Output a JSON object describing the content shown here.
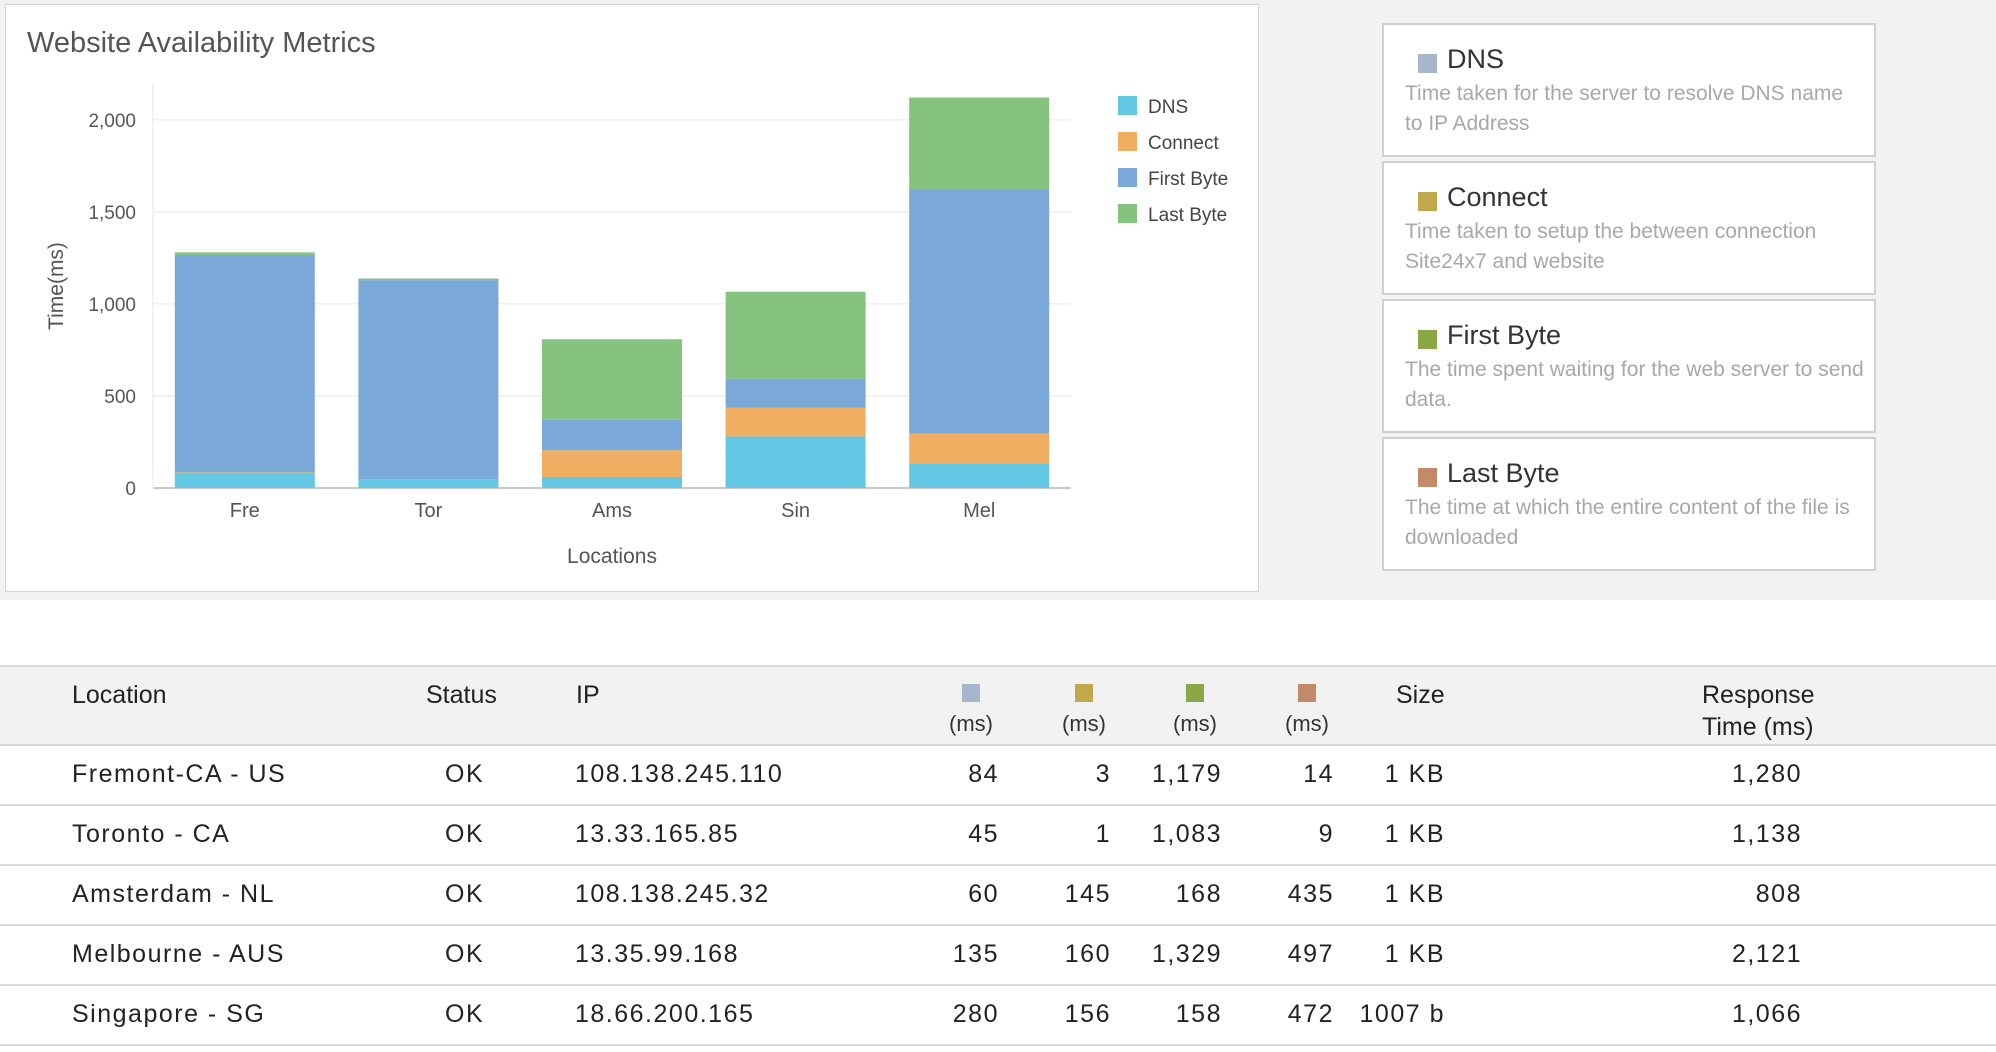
{
  "chart_title": "Website Availability Metrics",
  "chart_data": {
    "type": "bar",
    "stacked": true,
    "title": "Website Availability Metrics",
    "xlabel": "Locations",
    "ylabel": "Time(ms)",
    "ylim": [
      0,
      2200
    ],
    "yticks": [
      0,
      500,
      1000,
      1500,
      2000
    ],
    "ytick_labels": [
      "0",
      "500",
      "1,000",
      "1,500",
      "2,000"
    ],
    "categories": [
      "Fre",
      "Tor",
      "Ams",
      "Sin",
      "Mel"
    ],
    "series": [
      {
        "name": "DNS",
        "color": "#64c7e3",
        "values": [
          84,
          45,
          60,
          280,
          135
        ]
      },
      {
        "name": "Connect",
        "color": "#f0ae62",
        "values": [
          3,
          1,
          145,
          156,
          160
        ]
      },
      {
        "name": "First Byte",
        "color": "#7aa8d8",
        "values": [
          1179,
          1083,
          168,
          158,
          1329
        ]
      },
      {
        "name": "Last Byte",
        "color": "#84c27e",
        "values": [
          14,
          9,
          435,
          472,
          497
        ]
      }
    ],
    "legend_position": "top-right"
  },
  "legend_cards": [
    {
      "name": "DNS",
      "color": "#a6b7cc",
      "desc": "Time taken for the server to resolve DNS name to IP Address"
    },
    {
      "name": "Connect",
      "color": "#c2a84c",
      "desc": "Time taken to setup the between connection Site24x7 and website"
    },
    {
      "name": "First Byte",
      "color": "#8aa845",
      "desc": "The time spent waiting for the web server to send data."
    },
    {
      "name": "Last Byte",
      "color": "#c28a66",
      "desc": "The time at which the entire content of the file is downloaded"
    }
  ],
  "table": {
    "headers": {
      "location": "Location",
      "status": "Status",
      "ip": "IP",
      "unit": "(ms)",
      "size": "Size",
      "response_line1": "Response",
      "response_line2": "Time (ms)"
    },
    "rows": [
      {
        "location": "Fremont-CA - US",
        "status": "OK",
        "ip": "108.138.245.110",
        "dns": "84",
        "connect": "3",
        "first_byte": "1,179",
        "last_byte": "14",
        "size": "1 KB",
        "response": "1,280"
      },
      {
        "location": "Toronto - CA",
        "status": "OK",
        "ip": "13.33.165.85",
        "dns": "45",
        "connect": "1",
        "first_byte": "1,083",
        "last_byte": "9",
        "size": "1 KB",
        "response": "1,138"
      },
      {
        "location": "Amsterdam - NL",
        "status": "OK",
        "ip": "108.138.245.32",
        "dns": "60",
        "connect": "145",
        "first_byte": "168",
        "last_byte": "435",
        "size": "1 KB",
        "response": "808"
      },
      {
        "location": "Melbourne - AUS",
        "status": "OK",
        "ip": "13.35.99.168",
        "dns": "135",
        "connect": "160",
        "first_byte": "1,329",
        "last_byte": "497",
        "size": "1 KB",
        "response": "2,121"
      },
      {
        "location": "Singapore - SG",
        "status": "OK",
        "ip": "18.66.200.165",
        "dns": "280",
        "connect": "156",
        "first_byte": "158",
        "last_byte": "472",
        "size": "1007 b",
        "response": "1,066"
      }
    ]
  }
}
